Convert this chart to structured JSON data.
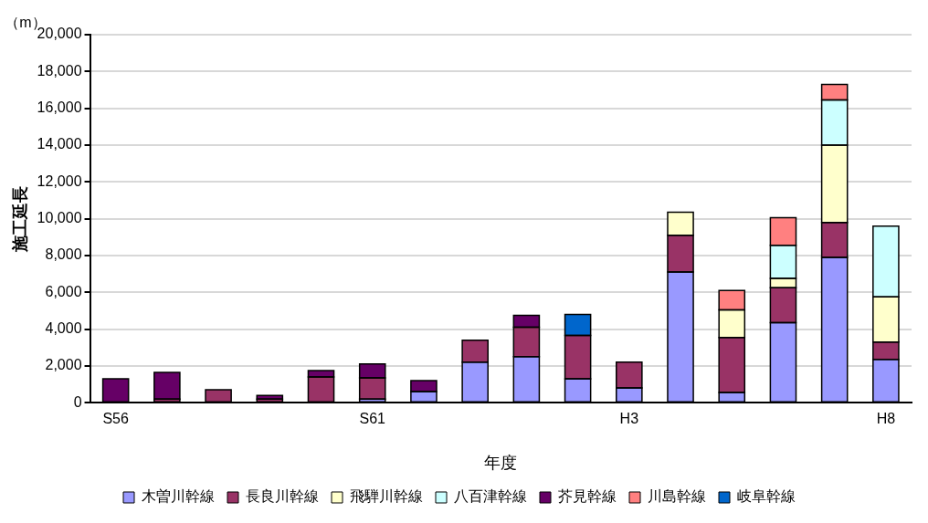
{
  "chart_data": {
    "type": "bar",
    "stacked": true,
    "xlabel": "年度",
    "ylabel": "施工延長",
    "annotations": [
      "（m）"
    ],
    "categories": [
      "S56",
      null,
      null,
      null,
      null,
      "S61",
      null,
      null,
      null,
      null,
      "H3",
      null,
      null,
      null,
      null,
      "H8"
    ],
    "series": [
      {
        "name": "木曽川幹線",
        "color": "#9999ff",
        "values": [
          null,
          null,
          null,
          null,
          null,
          200,
          600,
          2200,
          2500,
          1300,
          800,
          7100,
          550,
          4350,
          7900,
          2350
        ]
      },
      {
        "name": "長良川幹線",
        "color": "#993366",
        "values": [
          null,
          200,
          700,
          200,
          1400,
          1150,
          null,
          1200,
          1600,
          2350,
          1400,
          2000,
          3000,
          1900,
          1900,
          950
        ]
      },
      {
        "name": "飛騨川幹線",
        "color": "#ffffcc",
        "values": [
          null,
          null,
          null,
          null,
          null,
          null,
          null,
          null,
          null,
          null,
          null,
          1250,
          1500,
          500,
          4200,
          2450
        ]
      },
      {
        "name": "八百津幹線",
        "color": "#ccffff",
        "values": [
          null,
          null,
          null,
          null,
          null,
          null,
          null,
          null,
          null,
          null,
          null,
          null,
          null,
          1800,
          2450,
          3850
        ]
      },
      {
        "name": "芥見幹線",
        "color": "#660066",
        "values": [
          1300,
          1450,
          null,
          200,
          350,
          750,
          600,
          null,
          650,
          null,
          null,
          null,
          null,
          null,
          null,
          null
        ]
      },
      {
        "name": "川島幹線",
        "color": "#ff8080",
        "values": [
          null,
          null,
          null,
          null,
          null,
          null,
          null,
          null,
          null,
          null,
          null,
          null,
          1050,
          1500,
          850,
          null
        ]
      },
      {
        "name": "岐阜幹線",
        "color": "#0066cc",
        "values": [
          null,
          null,
          null,
          null,
          null,
          null,
          null,
          null,
          null,
          1150,
          null,
          null,
          null,
          null,
          null,
          null
        ]
      }
    ],
    "ylim": [
      0,
      20000
    ],
    "yticks": [
      {
        "value": 0,
        "label": "0"
      },
      {
        "value": 2000,
        "label": "2,000"
      },
      {
        "value": 4000,
        "label": "4,000"
      },
      {
        "value": 6000,
        "label": "6,000"
      },
      {
        "value": 8000,
        "label": "8,000"
      },
      {
        "value": 10000,
        "label": "10,000"
      },
      {
        "value": 12000,
        "label": "12,000"
      },
      {
        "value": 14000,
        "label": "14,000"
      },
      {
        "value": 16000,
        "label": "16,000"
      },
      {
        "value": 18000,
        "label": "18,000"
      },
      {
        "value": 20000,
        "label": "20,000"
      }
    ],
    "grid": "y",
    "legend": "bottom"
  }
}
